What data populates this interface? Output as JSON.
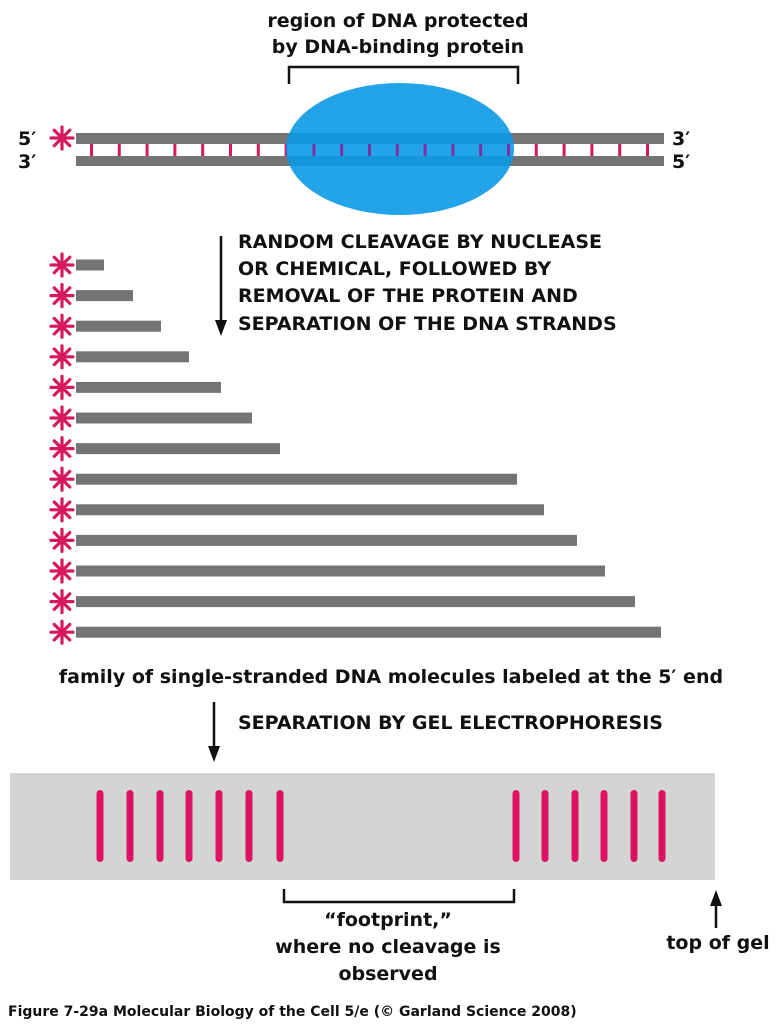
{
  "colors": {
    "strand": "#737474",
    "rung": "#d6185c",
    "protein": "#0c9ae6",
    "label_star": "#d6185c",
    "gel": "#d3d5d2",
    "gel_band": "#dd1262",
    "text": "#111111"
  },
  "top": {
    "protected_label_line1": "region of DNA protected",
    "protected_label_line2": "by DNA-binding protein",
    "strand_top_left": "5′",
    "strand_top_right": "3′",
    "strand_bottom_left": "3′",
    "strand_bottom_right": "5′"
  },
  "step1": {
    "line1": "RANDOM CLEAVAGE BY NUCLEASE",
    "line2": "OR CHEMICAL, FOLLOWED BY",
    "line3": "REMOVAL OF THE PROTEIN AND",
    "line4": "SEPARATION OF THE DNA STRANDS"
  },
  "fragments_caption": "family of single-stranded DNA molecules labeled at the 5′ end",
  "step2": "SEPARATION BY GEL ELECTROPHORESIS",
  "gel": {
    "footprint_line1": "“footprint,”",
    "footprint_line2": "where no cleavage is",
    "footprint_line3": "observed",
    "top_of_gel": "top of gel"
  },
  "figure_caption": "Figure 7-29a  Molecular Biology of the Cell 5/e (© Garland Science 2008)",
  "icons": [
    "label-star-icon",
    "down-arrow-icon",
    "up-arrow-icon"
  ]
}
